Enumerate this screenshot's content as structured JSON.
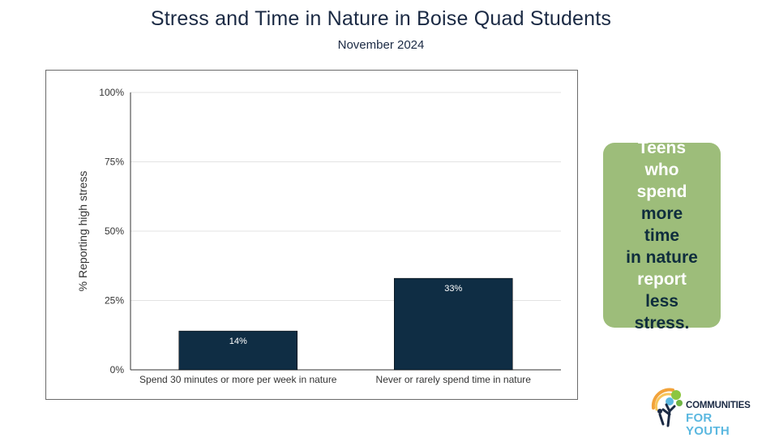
{
  "header": {
    "title": "Stress and Time in Nature in Boise Quad Students",
    "subtitle": "November 2024"
  },
  "chart_data": {
    "type": "bar",
    "categories": [
      "Spend 30 minutes or more per week in nature",
      "Never or rarely spend time in nature"
    ],
    "values": [
      14,
      33
    ],
    "data_labels": [
      "14%",
      "33%"
    ],
    "title": "",
    "xlabel": "",
    "ylabel": "% Reporting high stress",
    "ylim": [
      0,
      100
    ],
    "yticks": [
      0,
      25,
      50,
      75,
      100
    ],
    "ytick_labels": [
      "0%",
      "25%",
      "50%",
      "75%",
      "100%"
    ],
    "grid": true,
    "legend": "none",
    "bar_color": "#0f2d44"
  },
  "callout": {
    "lines": [
      {
        "text": "Teens",
        "style": "w"
      },
      {
        "text": "who",
        "style": "w"
      },
      {
        "text": "spend",
        "style": "w"
      },
      {
        "text": "more time",
        "style": "d"
      },
      {
        "text": "in nature",
        "style": "d"
      },
      {
        "text": "report",
        "style": "w"
      },
      {
        "text": "less",
        "style": "d"
      },
      {
        "text": "stress.",
        "style": "d"
      }
    ],
    "background": "#9dbd7a"
  },
  "logo": {
    "line1": "COMMUNITIES",
    "line2": "FOR YOUTH"
  }
}
